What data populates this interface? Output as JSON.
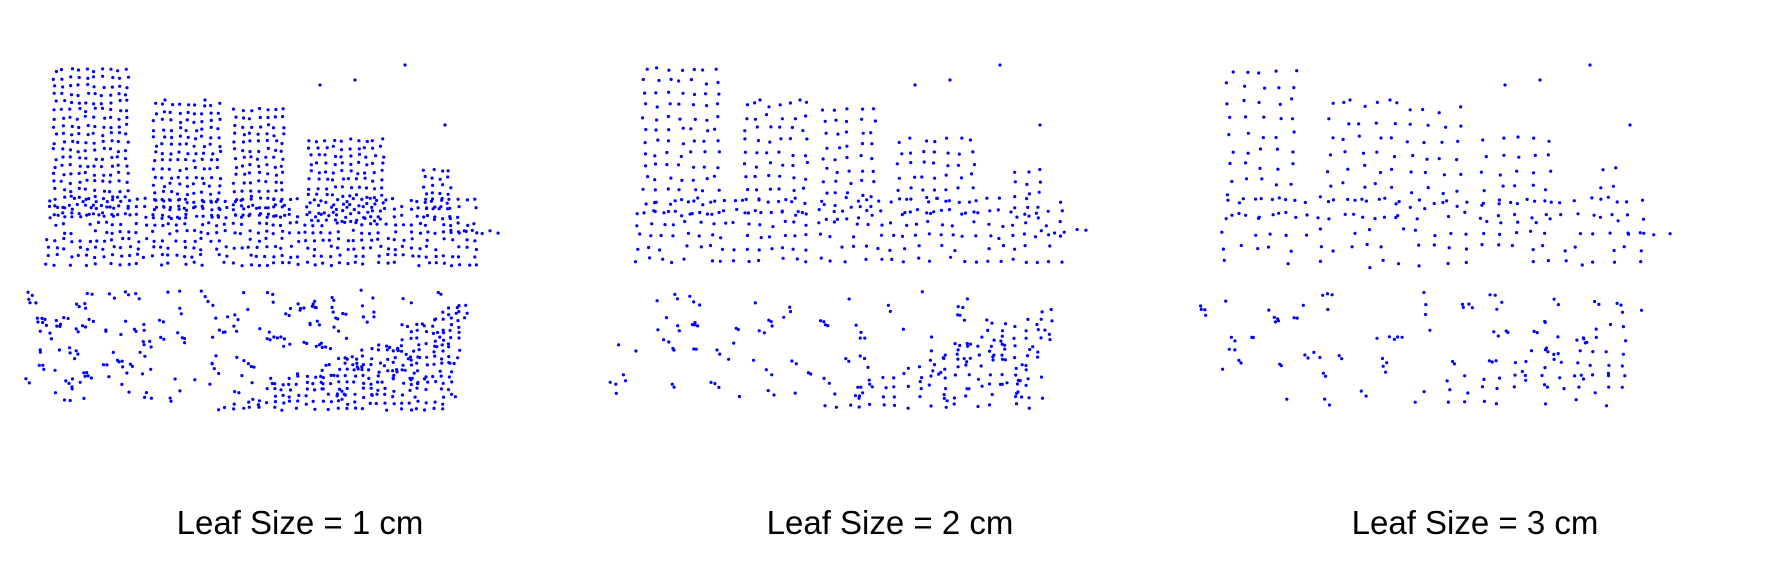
{
  "figure": {
    "point_color": "#0000ff",
    "background": "#ffffff",
    "panels": [
      {
        "caption": "Leaf Size = 1 cm",
        "leaf_size_cm": 1,
        "density": "high"
      },
      {
        "caption": "Leaf Size = 2 cm",
        "leaf_size_cm": 2,
        "density": "medium"
      },
      {
        "caption": "Leaf Size = 3 cm",
        "leaf_size_cm": 3,
        "density": "low"
      }
    ]
  }
}
